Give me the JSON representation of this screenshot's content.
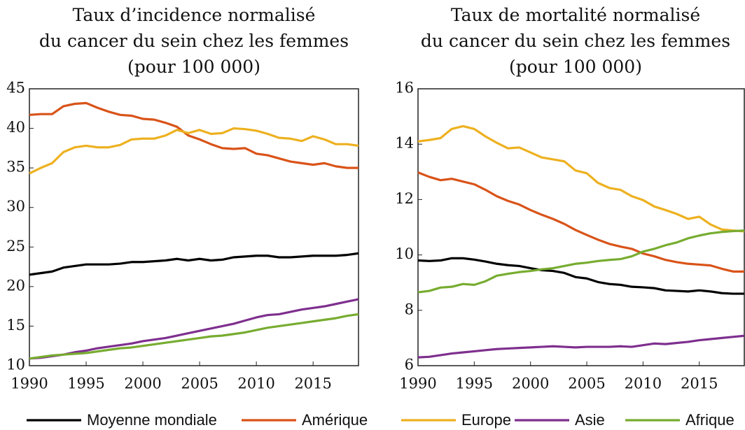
{
  "chart_data": [
    {
      "type": "line",
      "title": [
        "Taux d’incidence normalisé",
        "du cancer du sein chez les femmes",
        "(pour 100 000)"
      ],
      "x": [
        1990,
        1991,
        1992,
        1993,
        1994,
        1995,
        1996,
        1997,
        1998,
        1999,
        2000,
        2001,
        2002,
        2003,
        2004,
        2005,
        2006,
        2007,
        2008,
        2009,
        2010,
        2011,
        2012,
        2013,
        2014,
        2015,
        2016,
        2017,
        2018,
        2019
      ],
      "xlim": [
        1990,
        2019
      ],
      "xticks": [
        1990,
        1995,
        2000,
        2005,
        2010,
        2015
      ],
      "ylim": [
        10,
        45
      ],
      "yticks": [
        10,
        15,
        20,
        25,
        30,
        35,
        40,
        45
      ],
      "series": [
        {
          "name": "Moyenne mondiale",
          "color": "#000000",
          "values": [
            21.5,
            21.7,
            21.9,
            22.4,
            22.6,
            22.8,
            22.8,
            22.8,
            22.9,
            23.1,
            23.1,
            23.2,
            23.3,
            23.5,
            23.3,
            23.5,
            23.3,
            23.4,
            23.7,
            23.8,
            23.9,
            23.9,
            23.7,
            23.7,
            23.8,
            23.9,
            23.9,
            23.9,
            24.0,
            24.2
          ]
        },
        {
          "name": "Amérique",
          "color": "#d95319",
          "values": [
            41.7,
            41.8,
            41.8,
            42.8,
            43.1,
            43.2,
            42.6,
            42.1,
            41.7,
            41.6,
            41.2,
            41.1,
            40.7,
            40.2,
            39.1,
            38.6,
            38.0,
            37.5,
            37.4,
            37.5,
            36.8,
            36.6,
            36.2,
            35.8,
            35.6,
            35.4,
            35.6,
            35.2,
            35.0,
            35.0
          ]
        },
        {
          "name": "Europe",
          "color": "#edb120",
          "values": [
            34.3,
            35.0,
            35.6,
            37.0,
            37.6,
            37.8,
            37.6,
            37.6,
            37.9,
            38.6,
            38.7,
            38.7,
            39.1,
            39.8,
            39.4,
            39.8,
            39.3,
            39.4,
            40.0,
            39.9,
            39.7,
            39.3,
            38.8,
            38.7,
            38.4,
            39.0,
            38.6,
            38.0,
            38.0,
            37.8
          ]
        },
        {
          "name": "Asie",
          "color": "#7e2f8e",
          "values": [
            10.9,
            11.0,
            11.2,
            11.4,
            11.7,
            11.9,
            12.2,
            12.4,
            12.6,
            12.8,
            13.1,
            13.3,
            13.5,
            13.8,
            14.1,
            14.4,
            14.7,
            15.0,
            15.3,
            15.7,
            16.1,
            16.4,
            16.5,
            16.8,
            17.1,
            17.3,
            17.5,
            17.8,
            18.1,
            18.4
          ]
        },
        {
          "name": "Afrique",
          "color": "#77ac30",
          "values": [
            10.9,
            11.1,
            11.3,
            11.4,
            11.5,
            11.6,
            11.8,
            12.0,
            12.2,
            12.3,
            12.5,
            12.7,
            12.9,
            13.1,
            13.3,
            13.5,
            13.7,
            13.8,
            14.0,
            14.2,
            14.5,
            14.8,
            15.0,
            15.2,
            15.4,
            15.6,
            15.8,
            16.0,
            16.3,
            16.5
          ]
        }
      ]
    },
    {
      "type": "line",
      "title": [
        "Taux de mortalité normalisé",
        "du cancer du sein chez les femmes",
        "(pour 100 000)"
      ],
      "x": [
        1990,
        1991,
        1992,
        1993,
        1994,
        1995,
        1996,
        1997,
        1998,
        1999,
        2000,
        2001,
        2002,
        2003,
        2004,
        2005,
        2006,
        2007,
        2008,
        2009,
        2010,
        2011,
        2012,
        2013,
        2014,
        2015,
        2016,
        2017,
        2018,
        2019
      ],
      "xlim": [
        1990,
        2019
      ],
      "xticks": [
        1990,
        1995,
        2000,
        2005,
        2010,
        2015
      ],
      "ylim": [
        6,
        16
      ],
      "yticks": [
        6,
        8,
        10,
        12,
        14,
        16
      ],
      "series": [
        {
          "color": "#000000",
          "values": [
            9.8,
            9.78,
            9.8,
            9.88,
            9.88,
            9.83,
            9.76,
            9.68,
            9.63,
            9.6,
            9.52,
            9.45,
            9.42,
            9.35,
            9.2,
            9.15,
            9.02,
            8.95,
            8.92,
            8.85,
            8.83,
            8.8,
            8.72,
            8.7,
            8.68,
            8.72,
            8.68,
            8.62,
            8.6,
            8.6
          ]
        },
        {
          "color": "#d95319",
          "values": [
            12.98,
            12.82,
            12.7,
            12.75,
            12.65,
            12.55,
            12.35,
            12.12,
            11.95,
            11.82,
            11.62,
            11.45,
            11.3,
            11.12,
            10.9,
            10.72,
            10.55,
            10.4,
            10.3,
            10.22,
            10.05,
            9.95,
            9.82,
            9.74,
            9.68,
            9.65,
            9.62,
            9.5,
            9.4,
            9.4
          ]
        },
        {
          "color": "#edb120",
          "values": [
            14.1,
            14.15,
            14.22,
            14.55,
            14.65,
            14.55,
            14.28,
            14.05,
            13.85,
            13.88,
            13.7,
            13.52,
            13.45,
            13.38,
            13.05,
            12.95,
            12.6,
            12.42,
            12.35,
            12.12,
            11.98,
            11.75,
            11.62,
            11.48,
            11.3,
            11.38,
            11.1,
            10.92,
            10.88,
            10.85
          ]
        },
        {
          "color": "#7e2f8e",
          "values": [
            6.3,
            6.32,
            6.38,
            6.44,
            6.48,
            6.52,
            6.56,
            6.6,
            6.62,
            6.64,
            6.66,
            6.68,
            6.7,
            6.68,
            6.66,
            6.68,
            6.68,
            6.68,
            6.7,
            6.68,
            6.74,
            6.8,
            6.78,
            6.82,
            6.86,
            6.92,
            6.96,
            7.0,
            7.04,
            7.08
          ]
        },
        {
          "color": "#77ac30",
          "values": [
            8.65,
            8.7,
            8.82,
            8.85,
            8.95,
            8.92,
            9.05,
            9.25,
            9.32,
            9.38,
            9.42,
            9.48,
            9.52,
            9.6,
            9.68,
            9.72,
            9.78,
            9.82,
            9.85,
            9.95,
            10.12,
            10.22,
            10.35,
            10.45,
            10.6,
            10.7,
            10.78,
            10.83,
            10.86,
            10.88
          ]
        }
      ]
    }
  ]
}
